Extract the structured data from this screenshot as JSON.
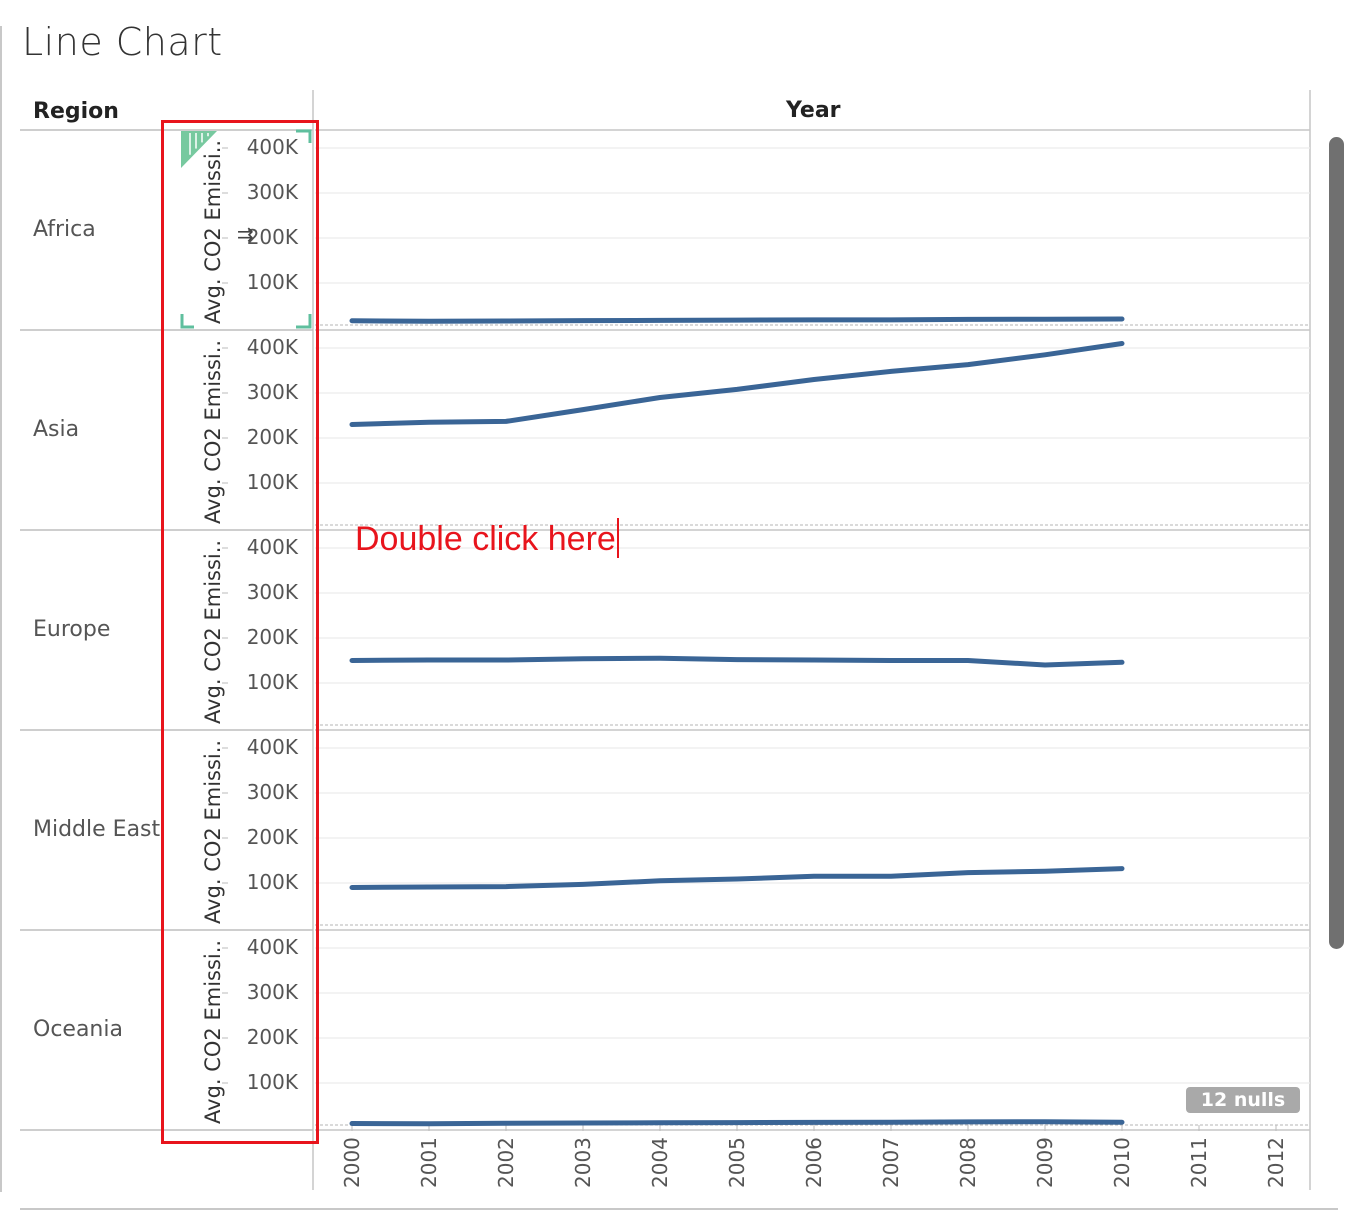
{
  "sheet": {
    "title": "Line Chart"
  },
  "headers": {
    "rows": "Region",
    "columns": "Year"
  },
  "axis_title": "Avg. CO2 Emissi..",
  "annotation": {
    "text": "Double click here"
  },
  "nulls_badge": "12 nulls",
  "colors": {
    "line": "#3a6596",
    "highlight": "#e8141c",
    "accent_pill": "#5fbf8e"
  },
  "chart_data": {
    "type": "line",
    "layout": "small-multiples",
    "x": [
      2000,
      2001,
      2002,
      2003,
      2004,
      2005,
      2006,
      2007,
      2008,
      2009,
      2010
    ],
    "xticks": [
      "2000",
      "2001",
      "2002",
      "2003",
      "2004",
      "2005",
      "2006",
      "2007",
      "2008",
      "2009",
      "2010",
      "2011",
      "2012"
    ],
    "xlim": [
      2000,
      2012
    ],
    "ylim": [
      0,
      440000
    ],
    "yticks": [
      100000,
      200000,
      300000,
      400000
    ],
    "ytick_labels": [
      "100K",
      "200K",
      "300K",
      "400K"
    ],
    "ylabel": "Avg. CO2 Emissi..",
    "xlabel": "Year",
    "grid": true,
    "series": [
      {
        "name": "Africa",
        "values": [
          16000,
          15000,
          15500,
          16500,
          17000,
          17500,
          18000,
          18000,
          19000,
          19500,
          20000
        ]
      },
      {
        "name": "Asia",
        "values": [
          230000,
          235000,
          237000,
          263000,
          290000,
          308000,
          330000,
          348000,
          363000,
          385000,
          410000
        ]
      },
      {
        "name": "Europe",
        "values": [
          150000,
          151000,
          151000,
          154000,
          155000,
          152000,
          151000,
          150000,
          150000,
          140000,
          146000
        ]
      },
      {
        "name": "Middle East",
        "values": [
          90000,
          91000,
          92000,
          97000,
          105000,
          109000,
          115000,
          115000,
          123000,
          126000,
          132000
        ]
      },
      {
        "name": "Oceania",
        "values": [
          10000,
          9500,
          10500,
          11000,
          11500,
          12000,
          12500,
          13000,
          13500,
          14000,
          13000
        ]
      }
    ]
  }
}
